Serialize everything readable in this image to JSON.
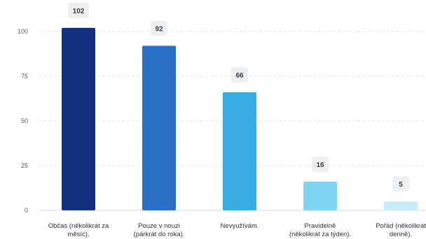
{
  "chart_data": {
    "type": "bar",
    "title": "",
    "xlabel": "",
    "ylabel": "",
    "categories": [
      [
        "Občas (několikrát za",
        "měsíc)."
      ],
      [
        "Pouze v nouzi",
        "(párkrát do roka)."
      ],
      [
        "Nevyužívám."
      ],
      [
        "Pravidelně",
        "(několikrát za týden)."
      ],
      [
        "Pořád (několikrát",
        "denně)."
      ]
    ],
    "values": [
      102,
      92,
      66,
      16,
      5
    ],
    "value_labels": [
      "102",
      "92",
      "66",
      "16",
      "5"
    ],
    "colors": [
      "#13317f",
      "#2a6fc6",
      "#3aace4",
      "#7fd3f3",
      "#c9ecfb"
    ],
    "ylim": [
      0,
      100
    ],
    "yticks": [
      0,
      25,
      50,
      75,
      100
    ],
    "ytick_labels": [
      "0",
      "25",
      "50",
      "75",
      "100"
    ],
    "grid": true,
    "legend": "none"
  }
}
